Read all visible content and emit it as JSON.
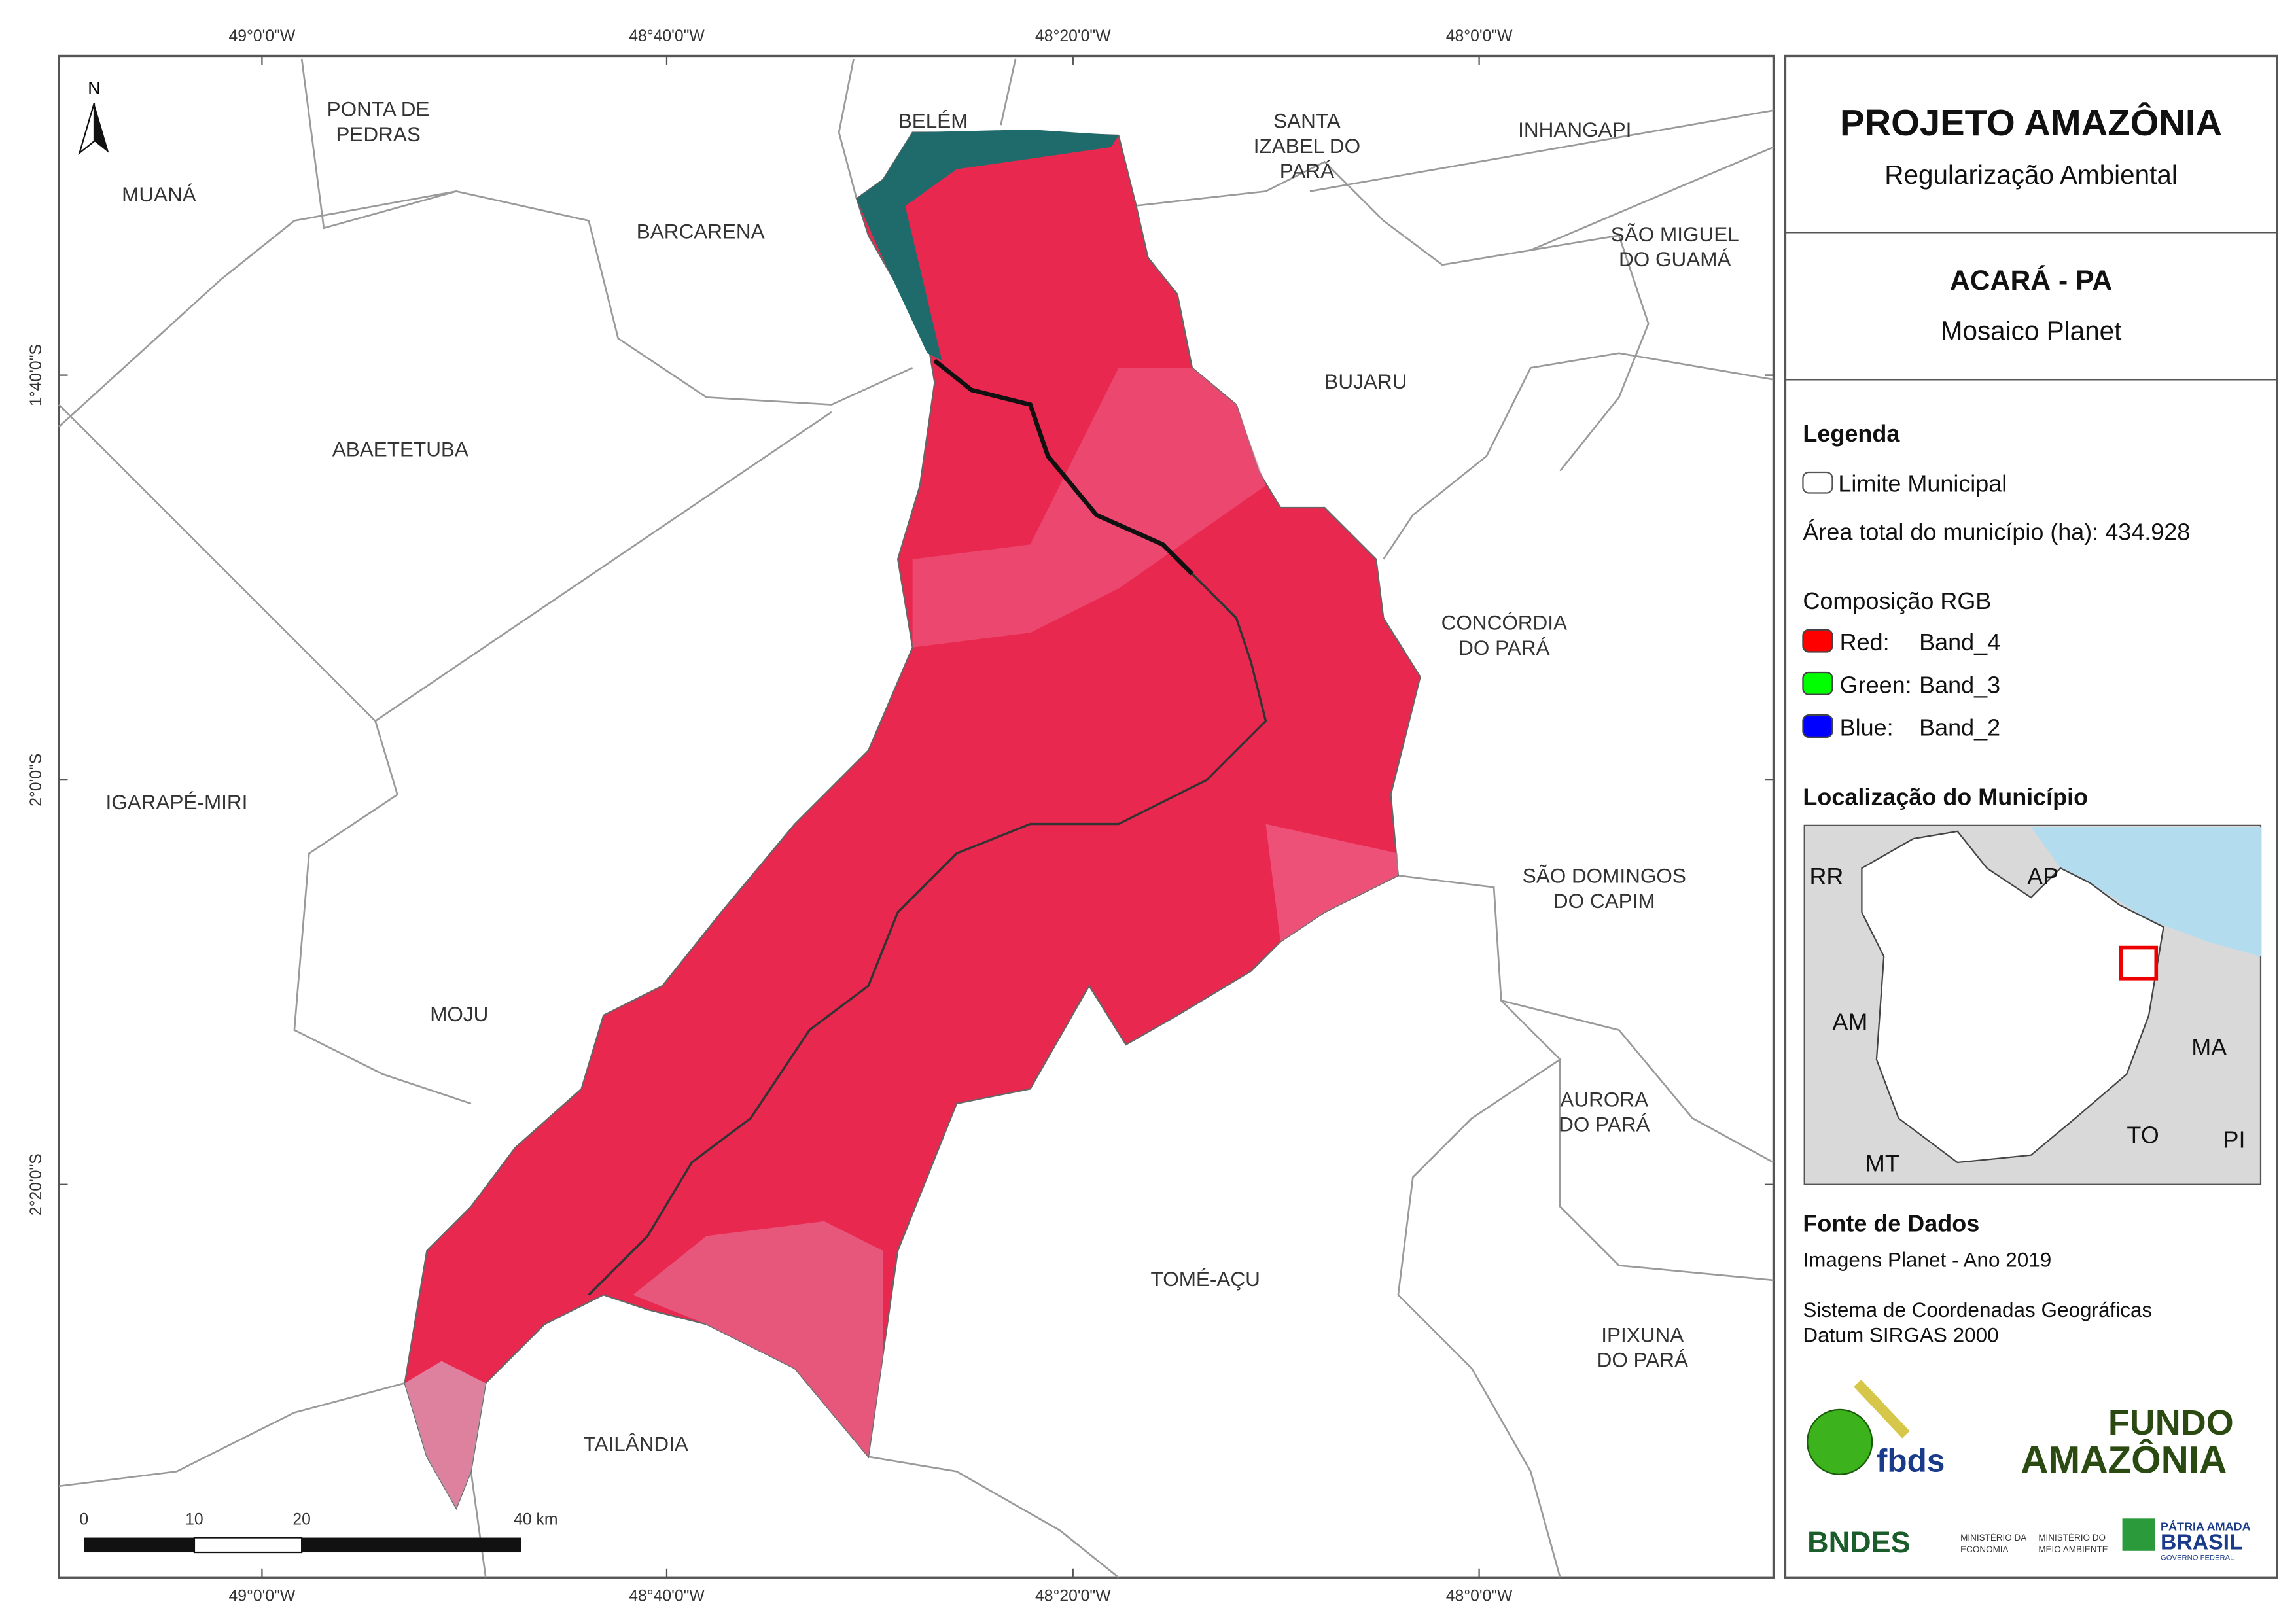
{
  "header": {
    "title": "PROJETO AMAZÔNIA",
    "subtitle": "Regularização Ambiental"
  },
  "map_info": {
    "title": "ACARÁ - PA",
    "subtitle": "Mosaico Planet"
  },
  "legend": {
    "title": "Legenda",
    "boundary": "Limite Municipal",
    "area": "Área total do município (ha): 434.928",
    "rgb_title": "Composição RGB",
    "bands": [
      {
        "label": "Red:",
        "band": "Band_4",
        "color": "#ff0000"
      },
      {
        "label": "Green:",
        "band": "Band_3",
        "color": "#00ff00"
      },
      {
        "label": "Blue:",
        "band": "Band_2",
        "color": "#0000ff"
      }
    ]
  },
  "location": {
    "title": "Localização do Município",
    "labels": [
      "RR",
      "AP",
      "AM",
      "MA",
      "TO",
      "PI",
      "MT"
    ]
  },
  "sources": {
    "title": "Fonte de Dados",
    "lines": [
      "Imagens Planet - Ano 2019",
      "Sistema de Coordenadas Geográficas",
      "Datum SIRGAS 2000"
    ]
  },
  "logos": {
    "fbds": "fbds",
    "fundo": [
      "FUNDO",
      "AMAZÔNIA"
    ],
    "bndes": "BNDES",
    "ministries": [
      "MINISTÉRIO DA",
      "ECONOMIA",
      "MINISTÉRIO DO",
      "MEIO AMBIENTE"
    ],
    "brasil": [
      "PÁTRIA AMADA",
      "BRASIL",
      "GOVERNO FEDERAL"
    ]
  },
  "map": {
    "north": "N",
    "x_labels": [
      "49°0'0\"W",
      "48°40'0\"W",
      "48°20'0\"W",
      "48°0'0\"W"
    ],
    "y_labels": [
      "1°40'0\"S",
      "2°0'0\"S",
      "2°20'0\"S"
    ],
    "scale_labels": [
      "0",
      "10",
      "20",
      "40 km"
    ],
    "municipalities": [
      [
        "PONTA DE",
        "PEDRAS"
      ],
      [
        "BELÉM"
      ],
      [
        "SANTA",
        "IZABEL DO",
        "PARÁ"
      ],
      [
        "INHANGAPI"
      ],
      [
        "MUANÁ"
      ],
      [
        "BARCARENA"
      ],
      [
        "SÃO MIGUEL",
        "DO GUAMÁ"
      ],
      [
        "BUJARU"
      ],
      [
        "ABAETETUBA"
      ],
      [
        "CONCÓRDIA",
        "DO PARÁ"
      ],
      [
        "IGARAPÉ-MIRI"
      ],
      [
        "SÃO DOMINGOS",
        "DO CAPIM"
      ],
      [
        "MOJU"
      ],
      [
        "AURORA",
        "DO PARÁ"
      ],
      [
        "TOMÉ-AÇU"
      ],
      [
        "IPIXUNA",
        "DO PARÁ"
      ],
      [
        "TAILÂNDIA"
      ]
    ]
  }
}
